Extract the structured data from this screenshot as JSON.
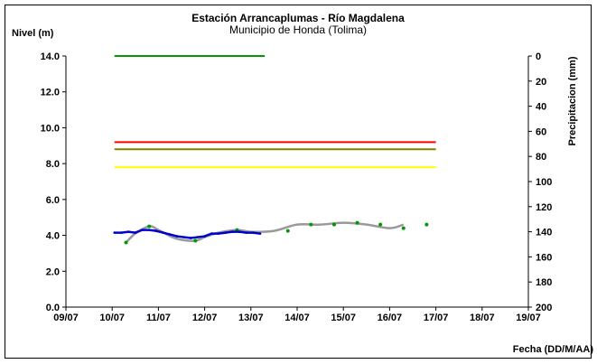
{
  "chart_data": {
    "type": "line",
    "title": "Estación Arrancaplumas - Río Magdalena",
    "subtitle": "Municipio de Honda (Tolima)",
    "xlabel": "Fecha (DD/M/AA)",
    "ylabel": "Nivel (m)",
    "y2label": "Precipitacion (mm)",
    "x_tick_labels": [
      "09/07",
      "10/07",
      "11/07",
      "12/07",
      "13/07",
      "14/07",
      "15/07",
      "16/07",
      "17/07",
      "18/07",
      "19/07"
    ],
    "y_tick_labels": [
      "0.0",
      "2.0",
      "4.0",
      "6.0",
      "8.0",
      "10.0",
      "12.0",
      "14.0"
    ],
    "y2_tick_labels": [
      "0",
      "20",
      "40",
      "60",
      "80",
      "100",
      "120",
      "140",
      "160",
      "180",
      "200"
    ],
    "xlim": [
      0,
      10
    ],
    "ylim": [
      0,
      14
    ],
    "y2lim": [
      0,
      200
    ],
    "y2_inverted": true,
    "grid": false,
    "thresholds": [
      {
        "color": "#ff0000",
        "x": [
          1.05,
          8.0
        ],
        "value": 9.2
      },
      {
        "color": "#808000",
        "x": [
          1.05,
          8.0
        ],
        "value": 8.8
      },
      {
        "color": "#ffff00",
        "x": [
          1.05,
          8.0
        ],
        "value": 7.8
      }
    ],
    "series": [
      {
        "color": "#009900",
        "axis": "y2",
        "kind": "precipitation",
        "x": [
          1.05,
          1.5,
          2.0,
          2.5,
          3.0,
          3.5,
          4.0,
          4.3
        ],
        "values": [
          0,
          0,
          0,
          0,
          0,
          0,
          0,
          0
        ]
      },
      {
        "color": "#999999",
        "axis": "y",
        "kind": "smoothed-level",
        "x": [
          1.3,
          1.5,
          1.8,
          2.0,
          2.3,
          2.5,
          2.8,
          3.0,
          3.3,
          3.7,
          4.0,
          4.5,
          5.0,
          5.5,
          6.0,
          6.5,
          7.0,
          7.3
        ],
        "values": [
          3.6,
          4.1,
          4.5,
          4.3,
          3.9,
          3.75,
          3.7,
          3.9,
          4.15,
          4.3,
          4.2,
          4.25,
          4.6,
          4.6,
          4.7,
          4.6,
          4.4,
          4.6
        ]
      },
      {
        "color": "#009900",
        "axis": "y",
        "kind": "level-points",
        "x": [
          1.3,
          1.8,
          2.8,
          3.7,
          4.8,
          5.3,
          5.8,
          6.3,
          6.8,
          7.3,
          7.8
        ],
        "values": [
          3.6,
          4.5,
          3.7,
          4.3,
          4.25,
          4.6,
          4.6,
          4.7,
          4.6,
          4.4,
          4.6
        ]
      },
      {
        "color": "#0000cc",
        "axis": "y",
        "kind": "observed-level",
        "x": [
          1.05,
          1.2,
          1.35,
          1.5,
          1.65,
          1.8,
          1.95,
          2.1,
          2.25,
          2.4,
          2.55,
          2.7,
          2.85,
          3.0,
          3.15,
          3.3,
          3.45,
          3.6,
          3.75,
          3.9,
          4.05,
          4.2
        ],
        "values": [
          4.15,
          4.15,
          4.2,
          4.15,
          4.3,
          4.3,
          4.25,
          4.15,
          4.05,
          3.95,
          3.9,
          3.85,
          3.9,
          3.95,
          4.1,
          4.1,
          4.15,
          4.2,
          4.2,
          4.15,
          4.15,
          4.1
        ]
      }
    ]
  }
}
